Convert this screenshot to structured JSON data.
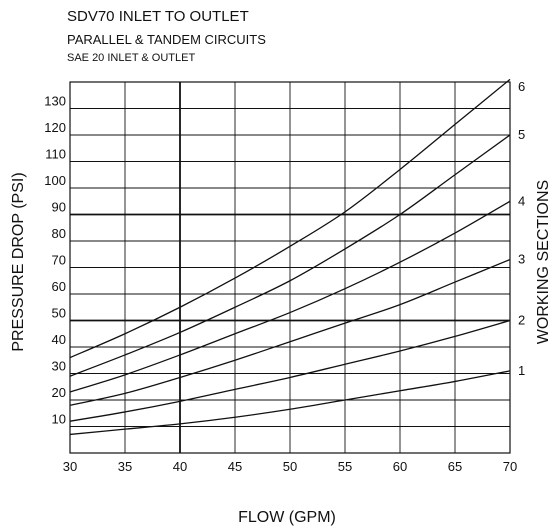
{
  "title": "SDV70 INLET TO OUTLET",
  "subtitle": "PARALLEL & TANDEM CIRCUITS",
  "subtitle2": "SAE 20 INLET & OUTLET",
  "chart_data": {
    "type": "line",
    "xlabel": "FLOW (GPM)",
    "ylabel": "PRESSURE DROP (PSI)",
    "right_label": "WORKING SECTIONS",
    "xlim": [
      30,
      70
    ],
    "ylim": [
      0,
      140
    ],
    "xticks": [
      30,
      35,
      40,
      45,
      50,
      55,
      60,
      65,
      70
    ],
    "yticks": [
      10,
      20,
      30,
      40,
      50,
      60,
      70,
      80,
      90,
      100,
      110,
      120,
      130
    ],
    "heavy_gridlines_x": [
      40
    ],
    "heavy_gridlines_y": [
      50,
      90
    ],
    "grid": true,
    "series": [
      {
        "name": "1",
        "x": [
          30,
          35,
          40,
          45,
          50,
          55,
          60,
          65,
          70
        ],
        "values": [
          7,
          9,
          11,
          13.5,
          16.5,
          20,
          23.5,
          27,
          31
        ]
      },
      {
        "name": "2",
        "x": [
          30,
          35,
          40,
          45,
          50,
          55,
          60,
          65,
          70
        ],
        "values": [
          12,
          15.5,
          19.5,
          24,
          28.5,
          33.5,
          38.5,
          44,
          50
        ]
      },
      {
        "name": "3",
        "x": [
          30,
          35,
          40,
          45,
          50,
          55,
          60,
          65,
          70
        ],
        "values": [
          18,
          22.5,
          28.5,
          35,
          42,
          49,
          56,
          64.5,
          73
        ]
      },
      {
        "name": "4",
        "x": [
          30,
          35,
          40,
          45,
          50,
          55,
          60,
          65,
          70
        ],
        "values": [
          23,
          29.5,
          37,
          45,
          53,
          62,
          72,
          83,
          95
        ]
      },
      {
        "name": "5",
        "x": [
          30,
          35,
          40,
          45,
          50,
          55,
          60,
          65,
          70
        ],
        "values": [
          29,
          37,
          45.5,
          55,
          65,
          77,
          90,
          105,
          120
        ]
      },
      {
        "name": "6",
        "x": [
          30,
          35,
          40,
          45,
          50,
          55,
          60,
          65,
          70
        ],
        "values": [
          36,
          45,
          55,
          66,
          78,
          91,
          107,
          124,
          141
        ]
      }
    ]
  }
}
